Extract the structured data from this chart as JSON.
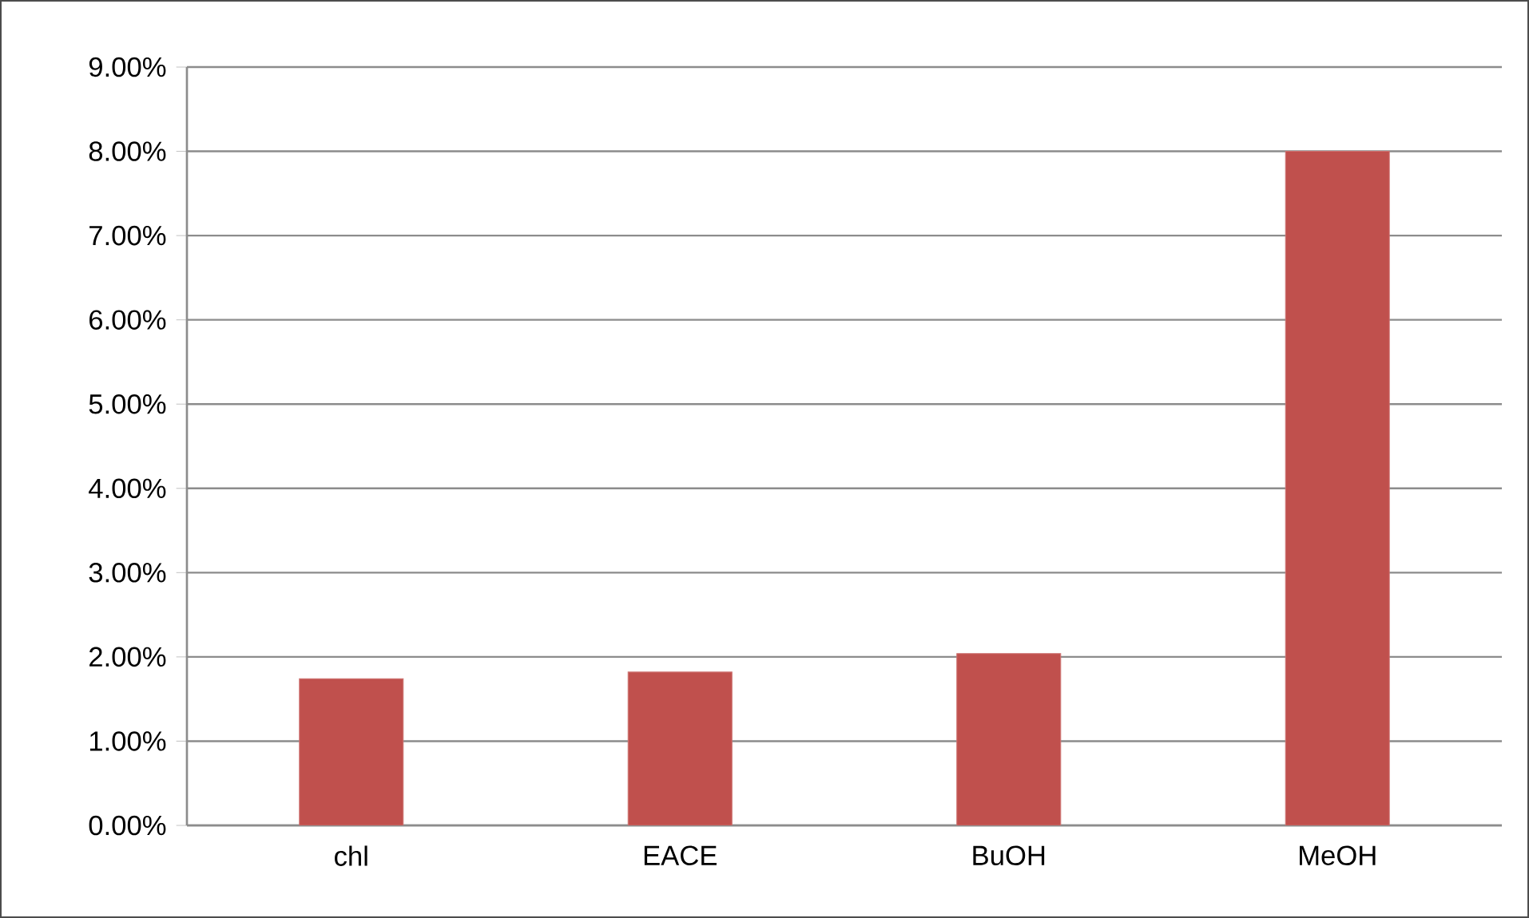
{
  "chart_data": {
    "type": "bar",
    "categories": [
      "chl",
      "EACE",
      "BuOH",
      "MeOH"
    ],
    "values": [
      1.74,
      1.82,
      2.04,
      8.0
    ],
    "color": "#c0504d",
    "ylim": [
      0,
      9
    ],
    "yticks": [
      {
        "value": 0,
        "label": "0.00%"
      },
      {
        "value": 1,
        "label": "1.00%"
      },
      {
        "value": 2,
        "label": "2.00%"
      },
      {
        "value": 3,
        "label": "3.00%"
      },
      {
        "value": 4,
        "label": "4.00%"
      },
      {
        "value": 5,
        "label": "5.00%"
      },
      {
        "value": 6,
        "label": "6.00%"
      },
      {
        "value": 7,
        "label": "7.00%"
      },
      {
        "value": 8,
        "label": "8.00%"
      },
      {
        "value": 9,
        "label": "9.00%"
      }
    ],
    "grid": "y"
  }
}
